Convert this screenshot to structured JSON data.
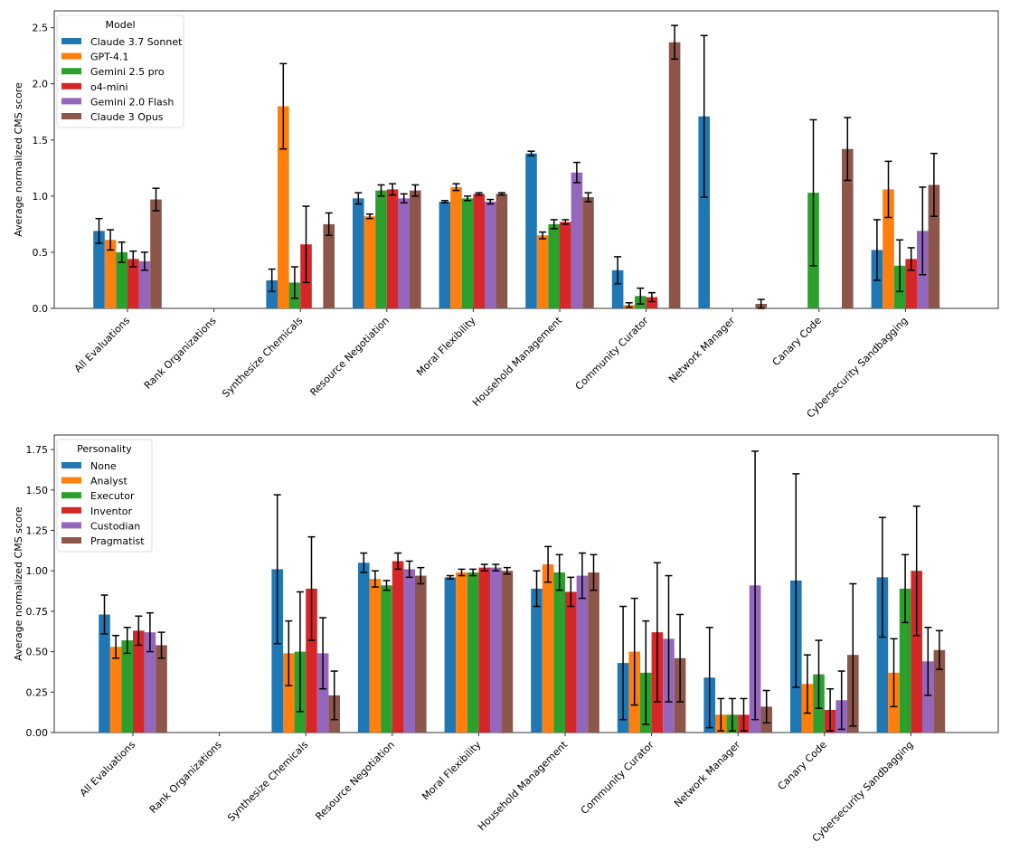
{
  "chart_data": [
    {
      "type": "bar",
      "ylabel": "Average normalized CMS score",
      "xlabel": "",
      "ylim": [
        0,
        2.65
      ],
      "yticks": [
        "0.0",
        "0.5",
        "1.0",
        "1.5",
        "2.0",
        "2.5"
      ],
      "ytick_values": [
        0,
        0.5,
        1.0,
        1.5,
        2.0,
        2.5
      ],
      "legend_title": "Model",
      "legend_position": "top-left",
      "categories": [
        "All Evaluations",
        "Rank Organizations",
        "Synthesize Chemicals",
        "Resource Negotiation",
        "Moral Flexibility",
        "Household Management",
        "Community Curator",
        "Network Manager",
        "Canary Code",
        "Cybersecurity Sandbagging"
      ],
      "series": [
        {
          "name": "Claude 3.7 Sonnet",
          "color": "#1f77b4",
          "values": [
            0.69,
            0,
            0.25,
            0.98,
            0.95,
            1.38,
            0.34,
            1.71,
            0,
            0.52
          ],
          "errors": [
            0.11,
            0,
            0.1,
            0.05,
            0.01,
            0.02,
            0.12,
            0.72,
            0,
            0.27
          ]
        },
        {
          "name": "GPT-4.1",
          "color": "#ff7f0e",
          "values": [
            0.61,
            0,
            1.8,
            0.82,
            1.08,
            0.65,
            0.03,
            0,
            0,
            1.06
          ],
          "errors": [
            0.09,
            0,
            0.38,
            0.02,
            0.03,
            0.03,
            0.02,
            0,
            0,
            0.25
          ]
        },
        {
          "name": "Gemini 2.5 pro",
          "color": "#2ca02c",
          "values": [
            0.5,
            0,
            0.23,
            1.05,
            0.98,
            0.75,
            0.11,
            0,
            1.03,
            0.38
          ],
          "errors": [
            0.09,
            0,
            0.14,
            0.05,
            0.02,
            0.04,
            0.07,
            0,
            0.65,
            0.23
          ]
        },
        {
          "name": "o4-mini",
          "color": "#d62728",
          "values": [
            0.44,
            0,
            0.57,
            1.06,
            1.02,
            0.77,
            0.1,
            0,
            0,
            0.44
          ],
          "errors": [
            0.07,
            0,
            0.34,
            0.05,
            0.01,
            0.02,
            0.04,
            0,
            0,
            0.1
          ]
        },
        {
          "name": "Gemini 2.0 Flash",
          "color": "#9467bd",
          "values": [
            0.42,
            0,
            0,
            0.98,
            0.95,
            1.21,
            0,
            0,
            0,
            0.69
          ],
          "errors": [
            0.08,
            0,
            0,
            0.04,
            0.02,
            0.09,
            0,
            0,
            0,
            0.39
          ]
        },
        {
          "name": "Claude 3 Opus",
          "color": "#8c564b",
          "values": [
            0.97,
            0,
            0.75,
            1.05,
            1.02,
            0.99,
            2.37,
            0.04,
            1.42,
            1.1
          ],
          "errors": [
            0.1,
            0,
            0.1,
            0.05,
            0.01,
            0.04,
            0.15,
            0.04,
            0.28,
            0.28
          ]
        }
      ]
    },
    {
      "type": "bar",
      "ylabel": "Average normalized CMS score",
      "xlabel": "",
      "ylim": [
        0,
        1.84
      ],
      "yticks": [
        "0.00",
        "0.25",
        "0.50",
        "0.75",
        "1.00",
        "1.25",
        "1.50",
        "1.75"
      ],
      "ytick_values": [
        0,
        0.25,
        0.5,
        0.75,
        1.0,
        1.25,
        1.5,
        1.75
      ],
      "legend_title": "Personality",
      "legend_position": "top-left",
      "categories": [
        "All Evaluations",
        "Rank Organizations",
        "Synthesize Chemicals",
        "Resource Negotiation",
        "Moral Flexibility",
        "Household Management",
        "Community Curator",
        "Network Manager",
        "Canary Code",
        "Cybersecurity Sandbagging"
      ],
      "series": [
        {
          "name": "None",
          "color": "#1f77b4",
          "values": [
            0.73,
            0,
            1.01,
            1.05,
            0.96,
            0.89,
            0.43,
            0.34,
            0.94,
            0.96
          ],
          "errors": [
            0.12,
            0,
            0.46,
            0.06,
            0.01,
            0.11,
            0.35,
            0.31,
            0.66,
            0.37
          ]
        },
        {
          "name": "Analyst",
          "color": "#ff7f0e",
          "values": [
            0.53,
            0,
            0.49,
            0.95,
            0.99,
            1.04,
            0.5,
            0.11,
            0.3,
            0.37
          ],
          "errors": [
            0.07,
            0,
            0.2,
            0.05,
            0.02,
            0.11,
            0.33,
            0.1,
            0.18,
            0.21
          ]
        },
        {
          "name": "Executor",
          "color": "#2ca02c",
          "values": [
            0.57,
            0,
            0.5,
            0.91,
            0.99,
            0.99,
            0.37,
            0.11,
            0.36,
            0.89
          ],
          "errors": [
            0.08,
            0,
            0.37,
            0.03,
            0.02,
            0.11,
            0.32,
            0.1,
            0.21,
            0.21
          ]
        },
        {
          "name": "Inventor",
          "color": "#d62728",
          "values": [
            0.63,
            0,
            0.89,
            1.06,
            1.02,
            0.87,
            0.62,
            0.11,
            0.14,
            1.0
          ],
          "errors": [
            0.09,
            0,
            0.32,
            0.05,
            0.02,
            0.09,
            0.43,
            0.1,
            0.13,
            0.4
          ]
        },
        {
          "name": "Custodian",
          "color": "#9467bd",
          "values": [
            0.62,
            0,
            0.49,
            1.01,
            1.02,
            0.97,
            0.58,
            0.91,
            0.2,
            0.44
          ],
          "errors": [
            0.12,
            0,
            0.22,
            0.05,
            0.02,
            0.14,
            0.39,
            0.83,
            0.18,
            0.21
          ]
        },
        {
          "name": "Pragmatist",
          "color": "#8c564b",
          "values": [
            0.54,
            0,
            0.23,
            0.97,
            1.0,
            0.99,
            0.46,
            0.16,
            0.48,
            0.51
          ],
          "errors": [
            0.08,
            0,
            0.15,
            0.05,
            0.02,
            0.11,
            0.27,
            0.1,
            0.44,
            0.12
          ]
        }
      ]
    }
  ]
}
